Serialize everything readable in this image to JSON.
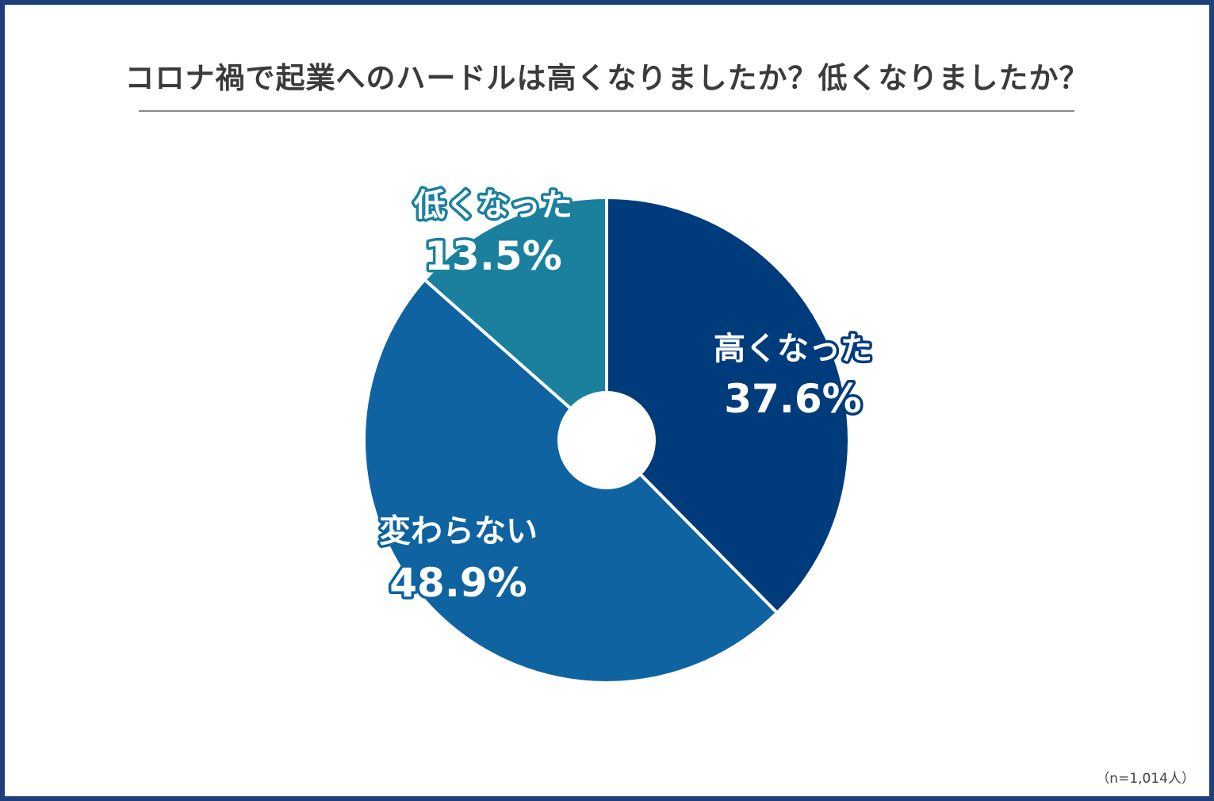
{
  "chart_data": {
    "type": "pie",
    "title": "コロナ禍で起業へのハードルは高くなりましたか？低くなりましたか？",
    "note": "（n=1,014人）",
    "series": [
      {
        "name": "高くなった",
        "value": 37.6,
        "label": "37.6%",
        "color": "#003c7b"
      },
      {
        "name": "変わらない",
        "value": 48.9,
        "label": "48.9%",
        "color": "#0e63a0"
      },
      {
        "name": "低くなった",
        "value": 13.5,
        "label": "13.5%",
        "color": "#1a809e"
      }
    ],
    "donut_hole": true,
    "start": "12 o'clock, clockwise"
  },
  "colors": {
    "frame": "#1f3f7a",
    "title_text": "#3b3b3b",
    "rule": "#8a8a8a"
  }
}
